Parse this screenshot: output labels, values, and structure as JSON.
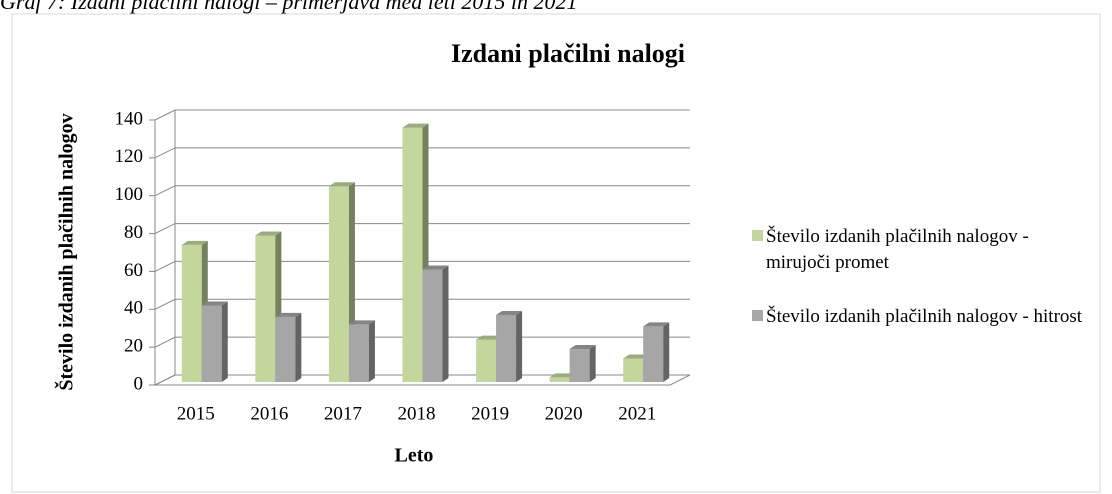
{
  "chart_data": {
    "type": "bar3d",
    "caption": "Graf 7: Izdani plačilni nalogi – primerjava med leti 2015 in 2021",
    "title": "Izdani plačilni nalogi",
    "y_label": "Število izdanih plačilnih nalogov",
    "x_label": "Leto",
    "categories": [
      "2015",
      "2016",
      "2017",
      "2018",
      "2019",
      "2020",
      "2021"
    ],
    "series": [
      {
        "name": "Število izdanih plačilnih nalogov - mirujoči promet",
        "color": "#c3d69b",
        "values": [
          74,
          79,
          105,
          136,
          24,
          4,
          14
        ]
      },
      {
        "name": "Število izdanih plačilnih nalogov - hitrost",
        "color": "#a6a6a6",
        "values": [
          42,
          36,
          32,
          61,
          37,
          19,
          31
        ]
      }
    ],
    "ylim": [
      0,
      140
    ],
    "yticks": [
      0,
      20,
      40,
      60,
      80,
      100,
      120,
      140
    ],
    "grid": true,
    "legend": "right"
  }
}
